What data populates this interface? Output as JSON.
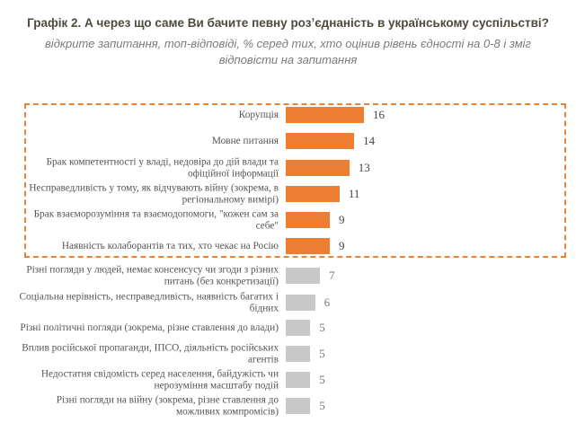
{
  "title": "Графік 2. А через що саме Ви бачите певну розʼєднаність в українському суспільстві?",
  "subtitle": "відкрите запитання, топ-відповіді, % серед тих, хто оцінив рівень єдності на 0-8 і зміг відповісти на запитання",
  "colors": {
    "highlight": "#ed7d31",
    "other": "#c8c8c8",
    "box_border": "#e8843a"
  },
  "chart_data": {
    "type": "bar",
    "orientation": "horizontal",
    "categories": [
      "Корупція",
      "Мовне питання",
      "Брак компетентності у владі, недовіра до дій влади та офіційної інформації",
      "Несправедливість у тому, як відчувають війну (зокрема, в регіональному вимірі)",
      "Брак взаєморозуміння та взаємодопомоги, \"кожен сам за себе\"",
      "Наявність колаборантів та тих, хто чекає на Росію",
      "Різні погляди у людей, немає консенсусу чи згоди з різних питань (без конкретизації)",
      "Соціальна нерівність, несправедливість, наявність багатих і бідних",
      "Різні політичні погляди (зокрема, різне ставлення до влади)",
      "Вплив російської пропаганди, ІПСО, діяльність російських агентів",
      "Недостатня свідомість серед населення,  байдужість чи нерозуміння масштабу подій",
      "Різні погляди на війну (зокрема, різне ставлення до можливих компромісів)"
    ],
    "values": [
      16,
      14,
      13,
      11,
      9,
      9,
      7,
      6,
      5,
      5,
      5,
      5
    ],
    "highlighted": [
      true,
      true,
      true,
      true,
      true,
      true,
      false,
      false,
      false,
      false,
      false,
      false
    ],
    "xlim": [
      0,
      16
    ],
    "grid": false,
    "legend": "none"
  }
}
